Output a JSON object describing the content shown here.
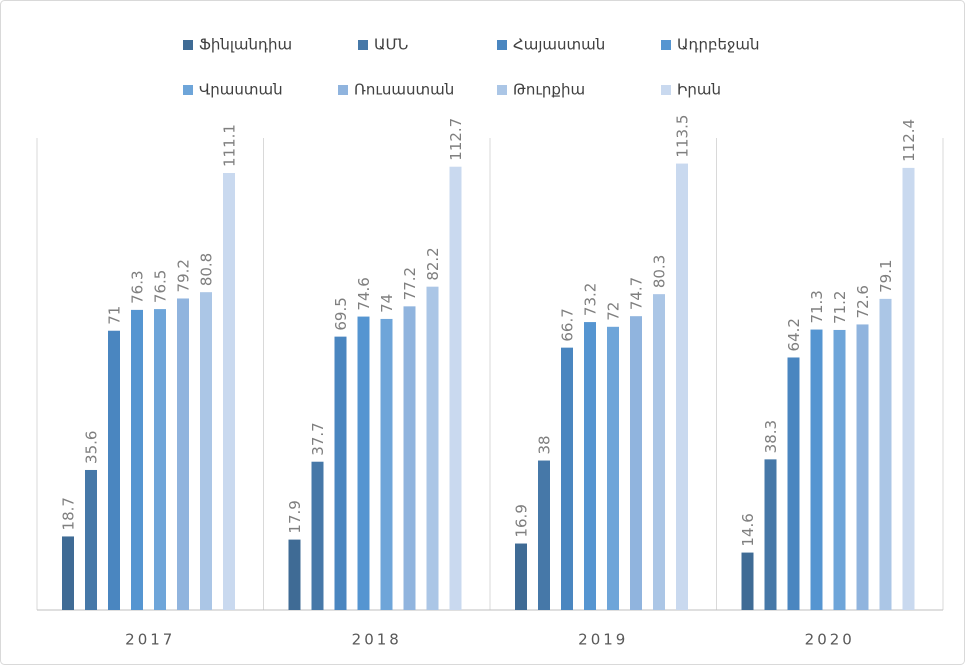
{
  "chart_data": {
    "type": "bar",
    "categories": [
      "2017",
      "2018",
      "2019",
      "2020"
    ],
    "series": [
      {
        "name": "Ֆինլանդիա",
        "color": "#3f6b95",
        "values": [
          18.7,
          17.9,
          16.9,
          14.6
        ]
      },
      {
        "name": "ԱՄՆ",
        "color": "#4678a8",
        "values": [
          35.6,
          37.7,
          38,
          38.3
        ]
      },
      {
        "name": "Հայաստան",
        "color": "#4a86c0",
        "values": [
          71,
          69.5,
          66.7,
          64.2
        ]
      },
      {
        "name": "Ադրբեջան",
        "color": "#5595d1",
        "values": [
          76.3,
          74.6,
          73.2,
          71.3
        ]
      },
      {
        "name": "Վրաստան",
        "color": "#6ea5d9",
        "values": [
          76.5,
          74,
          72,
          71.2
        ]
      },
      {
        "name": "Ռուսաստան",
        "color": "#90b4de",
        "values": [
          79.2,
          77.2,
          74.7,
          72.6
        ]
      },
      {
        "name": "Թուրքիա",
        "color": "#abc6e6",
        "values": [
          80.8,
          82.2,
          80.3,
          79.1
        ]
      },
      {
        "name": "Իրան",
        "color": "#c9d9ef",
        "values": [
          111.1,
          112.7,
          113.5,
          112.4
        ]
      }
    ],
    "ylim": [
      0,
      120
    ]
  }
}
